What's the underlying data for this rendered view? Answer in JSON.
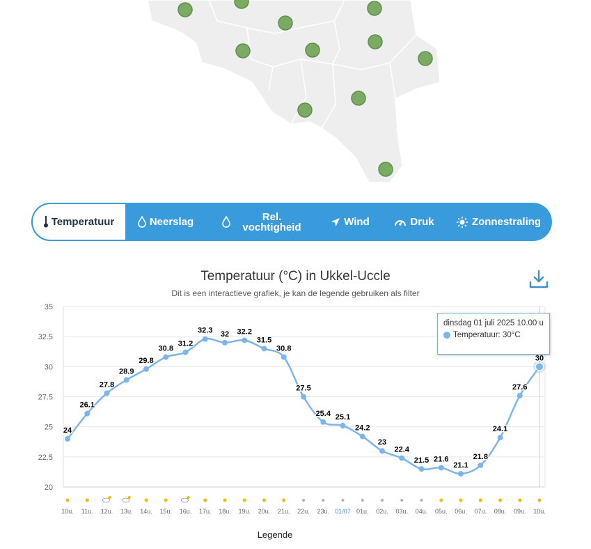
{
  "tabs": [
    {
      "label": "Temperatuur",
      "icon": "thermometer-icon",
      "active": true
    },
    {
      "label": "Neerslag",
      "icon": "raindrop-icon"
    },
    {
      "label": "Rel. vochtigheid",
      "icon": "humidity-drop-icon"
    },
    {
      "label": "Wind",
      "icon": "wind-arrow-icon"
    },
    {
      "label": "Druk",
      "icon": "gauge-icon"
    },
    {
      "label": "Zonnestraling",
      "icon": "sun-icon"
    }
  ],
  "colors": {
    "accent": "#3a9bdc",
    "series": "#7cb5ec",
    "station": "#7aaa64",
    "map": "#eeeeee"
  },
  "tooltip": {
    "date": "dinsdag 01 juli 2025 10.00 u",
    "series_label": "Temperatuur: 30°C"
  },
  "legend_label": "Legende",
  "chart_data": {
    "type": "line",
    "title": "Temperatuur (°C) in Ukkel-Uccle",
    "subtitle": "Dit is een interactieve grafiek, je kan de legende gebruiken als filter",
    "x": [
      "10u.",
      "11u.",
      "12u.",
      "13u.",
      "14u.",
      "15u.",
      "16u.",
      "17u.",
      "18u.",
      "19u.",
      "20u.",
      "21u.",
      "22u.",
      "23u.",
      "01/07",
      "01u.",
      "02u.",
      "03u.",
      "04u.",
      "05u.",
      "06u.",
      "07u.",
      "08u.",
      "09u.",
      "10u."
    ],
    "series": [
      {
        "values": [
          24,
          26.1,
          27.8,
          28.9,
          29.8,
          30.8,
          31.2,
          32.3,
          32,
          32.2,
          31.5,
          30.8,
          27.5,
          25.4,
          25.1,
          24.2,
          23,
          22.4,
          21.5,
          21.6,
          21.1,
          21.8,
          24.1,
          27.6,
          30
        ]
      }
    ],
    "weather_icons": [
      "sun",
      "sun",
      "partly-cloudy",
      "partly-cloudy",
      "sun",
      "sun",
      "partly-cloudy",
      "sun",
      "sun",
      "sun",
      "sun",
      "sun",
      "moon",
      "moon",
      "moon",
      "moon",
      "moon",
      "moon",
      "moon",
      "sun",
      "sun",
      "sun",
      "sun",
      "sun",
      "sun"
    ],
    "ylim": [
      20,
      35
    ],
    "yticks": [
      "35",
      "32.5",
      "30",
      "27.5",
      "25",
      "22.5",
      "20"
    ],
    "highlight_x": "10u.",
    "grid": true,
    "legend_position": "bottom"
  }
}
